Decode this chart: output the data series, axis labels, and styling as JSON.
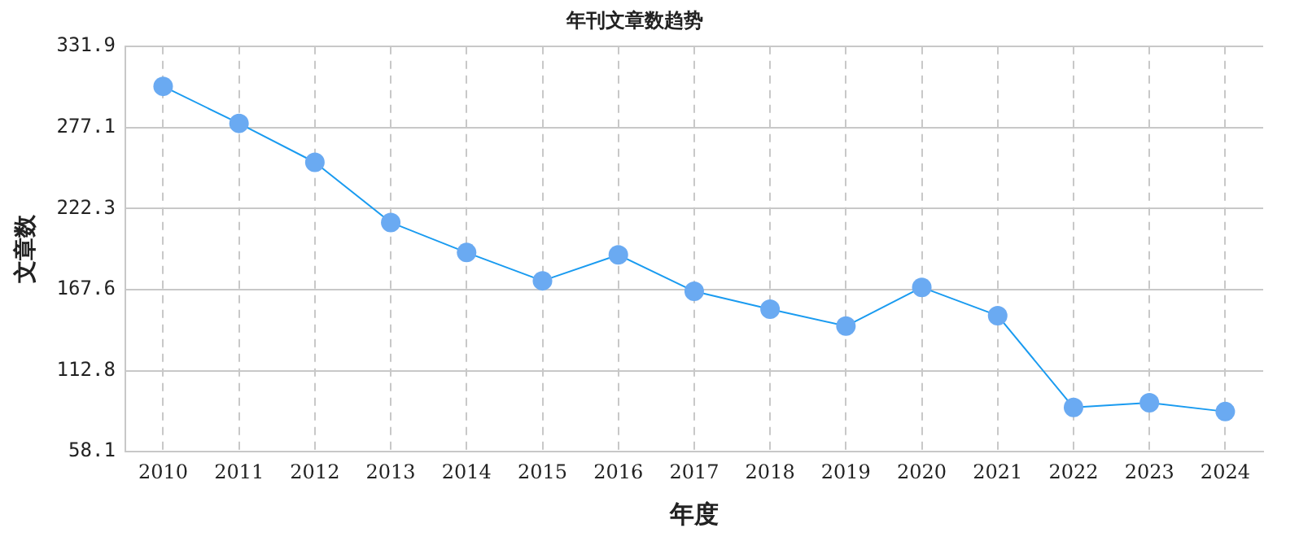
{
  "chart_data": {
    "type": "line",
    "title": "年刊文章数趋势",
    "xlabel": "年度",
    "ylabel": "文章数",
    "categories": [
      "2010",
      "2011",
      "2012",
      "2013",
      "2014",
      "2015",
      "2016",
      "2017",
      "2018",
      "2019",
      "2020",
      "2021",
      "2022",
      "2023",
      "2024"
    ],
    "series": [
      {
        "color": "#1a9bf0",
        "values": [
          304.8,
          279.8,
          253.5,
          212.9,
          192.6,
          173.5,
          191,
          166.4,
          154.4,
          142.9,
          169.1,
          150,
          88,
          91.2,
          85.2
        ]
      }
    ],
    "ylim": [
      58.1,
      331.9
    ],
    "yticks": [
      58.1,
      112.8,
      167.6,
      222.3,
      277.1,
      331.9
    ],
    "grid": true,
    "legend": false,
    "marker": "circle",
    "line_style": "solid"
  }
}
